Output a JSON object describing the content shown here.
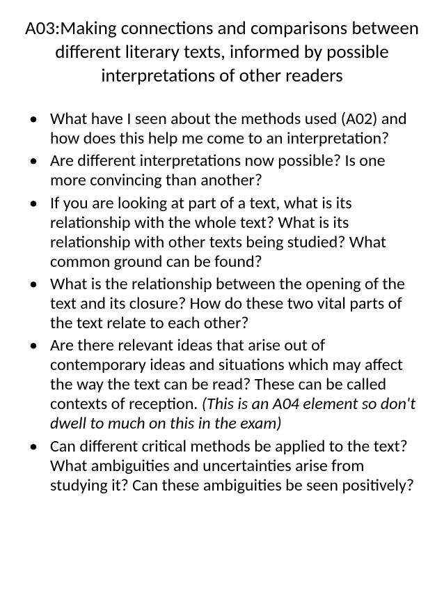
{
  "title": "A03:Making connections and comparisons between different literary texts, informed by possible interpretations of other readers",
  "bullets": [
    {
      "text": "What have I seen about the methods used (A02) and how does this help me come to an interpretation?"
    },
    {
      "text": "Are different interpretations now possible?  Is one more convincing than another?"
    },
    {
      "text": "If you are looking at part of a text, what is its relationship with the whole text?  What is its relationship with other texts being studied?  What common ground can be found?"
    },
    {
      "text": "What is the relationship between the opening of the text and its closure?  How do these two vital parts of the text relate to each other?"
    },
    {
      "text": "Are there relevant ideas that arise out of contemporary ideas and situations which may affect the way the text can be read?  These can be called contexts of reception. ",
      "italic_suffix": "(This is an A04 element so don't dwell to much on this in the exam)"
    },
    {
      "text": "Can different critical methods be applied to the text?  What ambiguities and uncertainties arise from studying it?  Can these ambiguities be seen positively?"
    }
  ],
  "colors": {
    "background": "#ffffff",
    "text": "#000000"
  },
  "typography": {
    "title_fontsize": 27,
    "body_fontsize": 24,
    "font_family": "Calibri"
  }
}
